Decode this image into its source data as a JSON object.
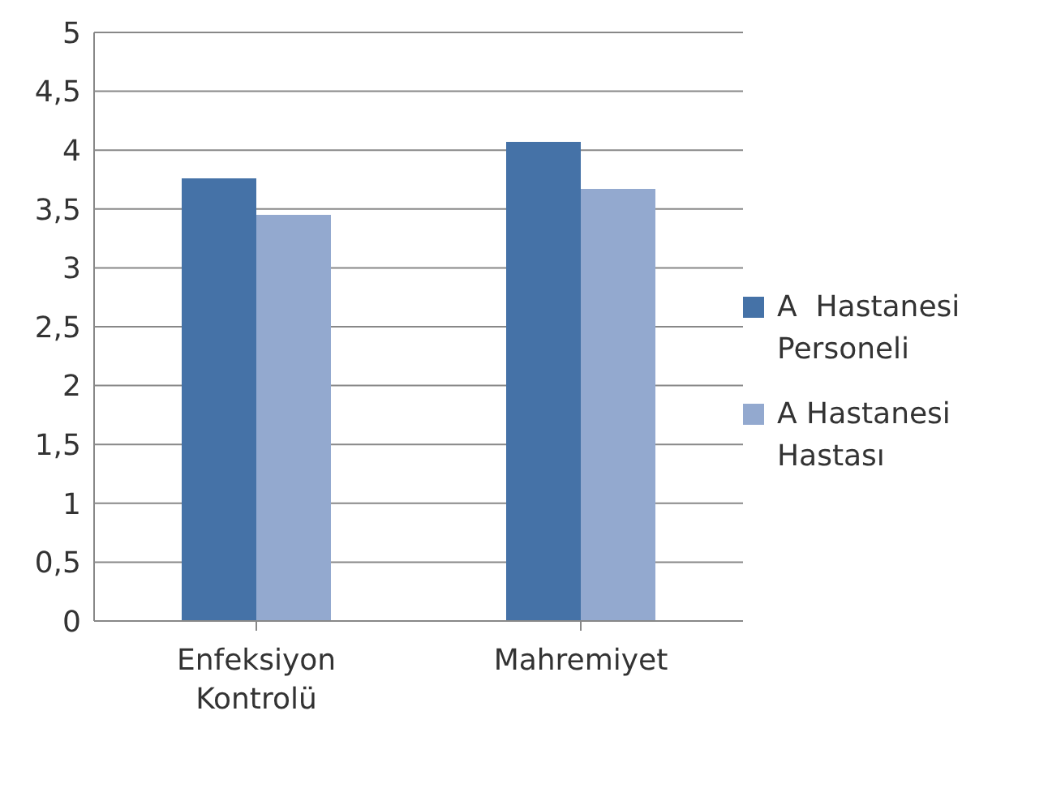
{
  "chart_data": {
    "type": "bar",
    "categories": [
      "Enfeksiyon Kontrolü",
      "Mahremiyet"
    ],
    "series": [
      {
        "name": "A  Hastanesi Personeli",
        "color": "#4572a7",
        "values": [
          3.76,
          4.07
        ]
      },
      {
        "name": "A Hastanesi Hastası",
        "color": "#93a9cf",
        "values": [
          3.45,
          3.67
        ]
      }
    ],
    "ylim": [
      0,
      5
    ],
    "yticks": [
      0,
      {
        "value": 0.5,
        "label": "0,5"
      },
      1,
      {
        "value": 1.5,
        "label": "1,5"
      },
      2,
      {
        "value": 2.5,
        "label": "2,5"
      },
      3,
      {
        "value": 3.5,
        "label": "3,5"
      },
      4,
      {
        "value": 4.5,
        "label": "4,5"
      },
      5
    ],
    "grid": "y",
    "legend": "right"
  }
}
